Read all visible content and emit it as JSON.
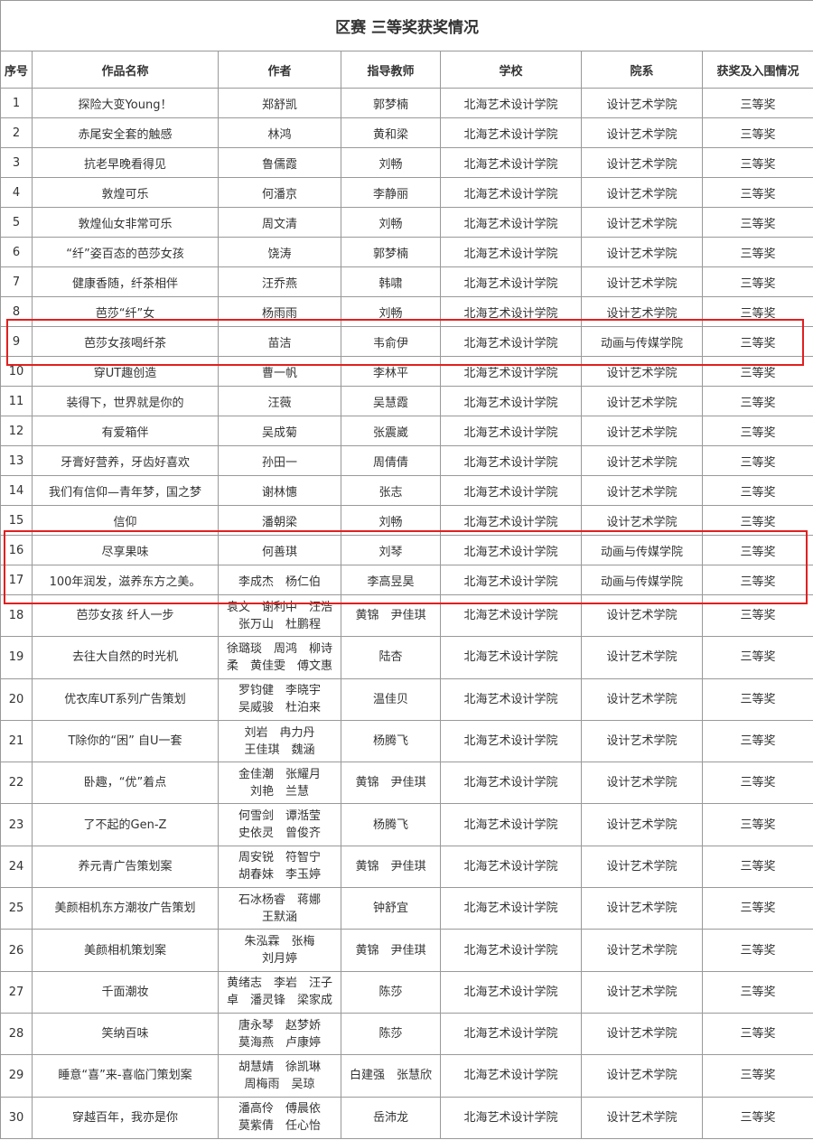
{
  "title": "区赛 三等奖获奖情况",
  "headers": [
    "序号",
    "作品名称",
    "作者",
    "指导教师",
    "学校",
    "院系",
    "获奖及入围情况"
  ],
  "highlight_color": "#e02020",
  "highlighted_rows": [
    9,
    16,
    17
  ],
  "rows": [
    [
      "1",
      "探险大变Young！",
      "郑舒凯",
      "郭梦楠",
      "北海艺术设计学院",
      "设计艺术学院",
      "三等奖"
    ],
    [
      "2",
      "赤尾安全套的触感",
      "林鸿",
      "黄和梁",
      "北海艺术设计学院",
      "设计艺术学院",
      "三等奖"
    ],
    [
      "3",
      "抗老早晚看得见",
      "鲁儒霞",
      "刘畅",
      "北海艺术设计学院",
      "设计艺术学院",
      "三等奖"
    ],
    [
      "4",
      "敦煌可乐",
      "何潘京",
      "李静丽",
      "北海艺术设计学院",
      "设计艺术学院",
      "三等奖"
    ],
    [
      "5",
      "敦煌仙女非常可乐",
      "周文清",
      "刘畅",
      "北海艺术设计学院",
      "设计艺术学院",
      "三等奖"
    ],
    [
      "6",
      "“纤”姿百态的芭莎女孩",
      "饶涛",
      "郭梦楠",
      "北海艺术设计学院",
      "设计艺术学院",
      "三等奖"
    ],
    [
      "7",
      "健康香随，纤茶相伴",
      "汪乔燕",
      "韩啸",
      "北海艺术设计学院",
      "设计艺术学院",
      "三等奖"
    ],
    [
      "8",
      "芭莎“纤”女",
      "杨雨雨",
      "刘畅",
      "北海艺术设计学院",
      "设计艺术学院",
      "三等奖"
    ],
    [
      "9",
      "芭莎女孩喝纤茶",
      "苗洁",
      "韦俞伊",
      "北海艺术设计学院",
      "动画与传媒学院",
      "三等奖"
    ],
    [
      "10",
      "穿UT趣创造",
      "曹一帆",
      "李林平",
      "北海艺术设计学院",
      "设计艺术学院",
      "三等奖"
    ],
    [
      "11",
      "装得下，世界就是你的",
      "汪薇",
      "吴慧霞",
      "北海艺术设计学院",
      "设计艺术学院",
      "三等奖"
    ],
    [
      "12",
      "有爱箱伴",
      "吴成菊",
      "张震崴",
      "北海艺术设计学院",
      "设计艺术学院",
      "三等奖"
    ],
    [
      "13",
      "牙膏好营养，牙齿好喜欢",
      "孙田一",
      "周倩倩",
      "北海艺术设计学院",
      "设计艺术学院",
      "三等奖"
    ],
    [
      "14",
      "我们有信仰—青年梦，国之梦",
      "谢林憓",
      "张志",
      "北海艺术设计学院",
      "设计艺术学院",
      "三等奖"
    ],
    [
      "15",
      "信仰",
      "潘朝梁",
      "刘畅",
      "北海艺术设计学院",
      "设计艺术学院",
      "三等奖"
    ],
    [
      "16",
      "尽享果味",
      "何善琪",
      "刘琴",
      "北海艺术设计学院",
      "动画与传媒学院",
      "三等奖"
    ],
    [
      "17",
      "100年润发，滋养东方之美。",
      "李成杰　杨仁伯",
      "李高昱昊",
      "北海艺术设计学院",
      "动画与传媒学院",
      "三等奖"
    ],
    [
      "18",
      "芭莎女孩 纤人一步",
      "袁文　谢利中　汪浩\n张万山　杜鹏程",
      "黄锦　尹佳琪",
      "北海艺术设计学院",
      "设计艺术学院",
      "三等奖"
    ],
    [
      "19",
      "去往大自然的时光机",
      "徐璐琰　周鸿　柳诗\n柔　黄佳雯　傅文惠",
      "陆杏",
      "北海艺术设计学院",
      "设计艺术学院",
      "三等奖"
    ],
    [
      "20",
      "优衣库UT系列广告策划",
      "罗钧健　李晓宇\n吴威骏　杜泊来",
      "温佳贝",
      "北海艺术设计学院",
      "设计艺术学院",
      "三等奖"
    ],
    [
      "21",
      "T除你的“困” 自U一套",
      "刘岩　冉力丹\n王佳琪　魏涵",
      "杨腾飞",
      "北海艺术设计学院",
      "设计艺术学院",
      "三等奖"
    ],
    [
      "22",
      "卧趣，“优”着点",
      "金佳潮　张耀月\n刘艳　兰慧",
      "黄锦　尹佳琪",
      "北海艺术设计学院",
      "设计艺术学院",
      "三等奖"
    ],
    [
      "23",
      "了不起的Gen-Z",
      "何雪剑　谭湉莹\n史依灵　曾俊齐",
      "杨腾飞",
      "北海艺术设计学院",
      "设计艺术学院",
      "三等奖"
    ],
    [
      "24",
      "养元青广告策划案",
      "周安锐　符智宁\n胡春妹　李玉婷",
      "黄锦　尹佳琪",
      "北海艺术设计学院",
      "设计艺术学院",
      "三等奖"
    ],
    [
      "25",
      "美颜相机东方潮妆广告策划",
      "石冰杨睿　蒋娜\n王默涵",
      "钟舒宜",
      "北海艺术设计学院",
      "设计艺术学院",
      "三等奖"
    ],
    [
      "26",
      "美颜相机策划案",
      "朱泓霖　张梅\n刘月婷",
      "黄锦　尹佳琪",
      "北海艺术设计学院",
      "设计艺术学院",
      "三等奖"
    ],
    [
      "27",
      "千面潮妆",
      "黄绪志　李岩　汪子\n卓　潘灵锋　梁家成",
      "陈莎",
      "北海艺术设计学院",
      "设计艺术学院",
      "三等奖"
    ],
    [
      "28",
      "笑纳百味",
      "唐永琴　赵梦娇\n莫海燕　卢康婷",
      "陈莎",
      "北海艺术设计学院",
      "设计艺术学院",
      "三等奖"
    ],
    [
      "29",
      "睡意“喜”来-喜临门策划案",
      "胡慧婧　徐凯琳\n周梅雨　吴琼",
      "白建强　张慧欣",
      "北海艺术设计学院",
      "设计艺术学院",
      "三等奖"
    ],
    [
      "30",
      "穿越百年，我亦是你",
      "潘高伶　傅晨依\n莫紫倩　任心怡",
      "岳沛龙",
      "北海艺术设计学院",
      "设计艺术学院",
      "三等奖"
    ]
  ]
}
